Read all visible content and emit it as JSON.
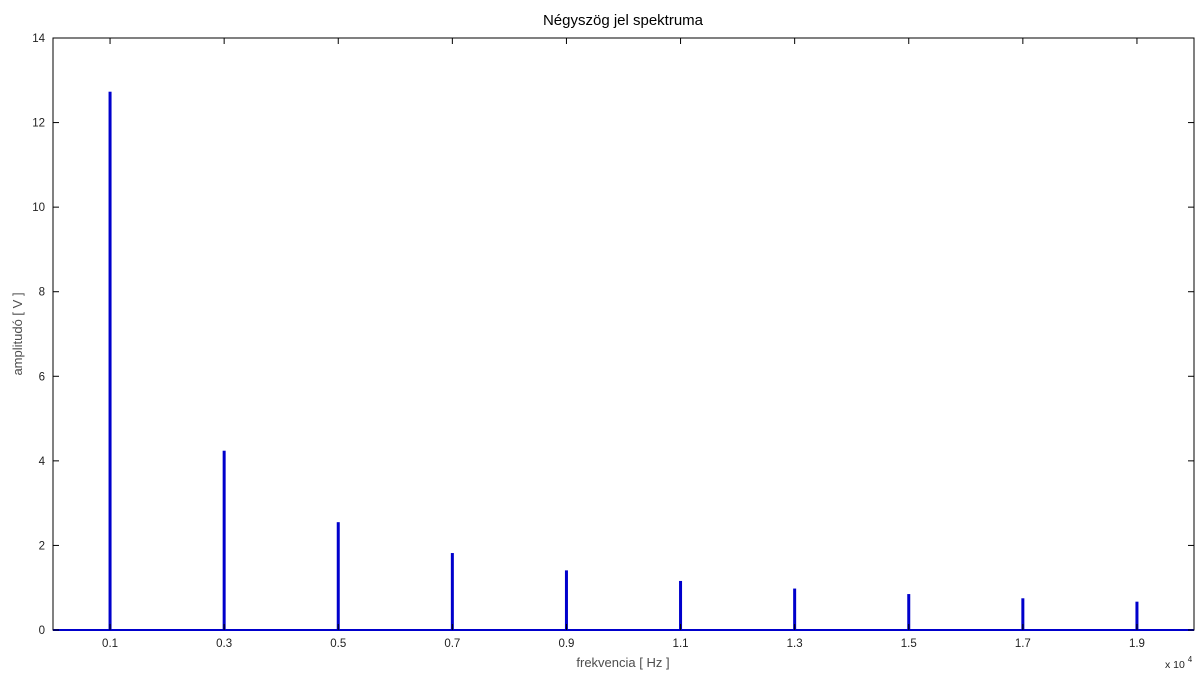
{
  "chart_data": {
    "type": "bar",
    "title": "Négyszög jel spektruma",
    "xlabel": "frekvencia [ Hz ]",
    "ylabel": "amplitudó [ V ]",
    "x_multiplier_label": "x 10",
    "x_multiplier_exponent": "4",
    "xlim": [
      0,
      20000
    ],
    "ylim": [
      0,
      14
    ],
    "x_tick_values": [
      1000,
      3000,
      5000,
      7000,
      9000,
      11000,
      13000,
      15000,
      17000,
      19000
    ],
    "x_tick_labels": [
      "0.1",
      "0.3",
      "0.5",
      "0.7",
      "0.9",
      "1.1",
      "1.3",
      "1.5",
      "1.7",
      "1.9"
    ],
    "y_tick_values": [
      0,
      2,
      4,
      6,
      8,
      10,
      12,
      14
    ],
    "y_tick_labels": [
      "0",
      "2",
      "4",
      "6",
      "8",
      "10",
      "12",
      "14"
    ],
    "grid": false,
    "color": "#0000cc",
    "series": [
      {
        "x": [
          1000,
          3000,
          5000,
          7000,
          9000,
          11000,
          13000,
          15000,
          17000,
          19000
        ],
        "values": [
          12.73,
          4.24,
          2.55,
          1.82,
          1.41,
          1.16,
          0.98,
          0.85,
          0.75,
          0.67
        ]
      }
    ]
  }
}
